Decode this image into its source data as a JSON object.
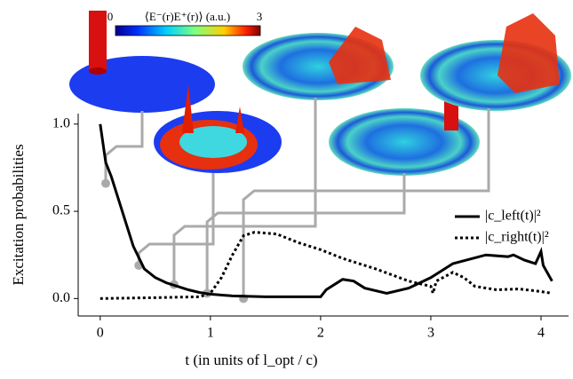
{
  "chart_data": {
    "type": "line",
    "xlabel": "t (in units of l_opt / c)",
    "ylabel": "Excitation probabilities",
    "colorbar": {
      "label": "⟨E⁻(r)E⁺(r)⟩ (a.u.)",
      "min": 0,
      "max": 3
    },
    "xlim": [
      -0.2,
      4.25
    ],
    "ylim": [
      -0.1,
      1.06
    ],
    "xticks": [
      0,
      1,
      2,
      3,
      4
    ],
    "yticks": [
      {
        "value": 0,
        "label": "0.0"
      },
      {
        "value": 0.5,
        "label": "0.5"
      },
      {
        "value": 1,
        "label": "1.0"
      }
    ],
    "legend": "right",
    "series": [
      {
        "name": "|c_left(t)|²",
        "color": "#000000",
        "dash": "solid",
        "x": [
          0,
          0.05,
          0.1,
          0.2,
          0.3,
          0.4,
          0.5,
          0.6,
          0.7,
          0.8,
          0.9,
          1.0,
          1.2,
          1.5,
          2.0,
          2.05,
          2.2,
          2.3,
          2.4,
          2.6,
          2.8,
          3.0,
          3.2,
          3.5,
          3.7,
          3.75,
          3.85,
          3.95,
          4.0,
          4.02,
          4.1
        ],
        "values": [
          1.0,
          0.78,
          0.7,
          0.5,
          0.3,
          0.17,
          0.12,
          0.09,
          0.07,
          0.05,
          0.035,
          0.025,
          0.015,
          0.01,
          0.01,
          0.05,
          0.11,
          0.1,
          0.06,
          0.03,
          0.06,
          0.12,
          0.2,
          0.25,
          0.24,
          0.25,
          0.22,
          0.2,
          0.27,
          0.19,
          0.1
        ]
      },
      {
        "name": "|c_right(t)|²",
        "color": "#000000",
        "dash": "dotted",
        "x": [
          0,
          0.5,
          0.9,
          1.0,
          1.1,
          1.2,
          1.3,
          1.4,
          1.6,
          1.8,
          2.0,
          2.2,
          2.5,
          2.8,
          3.0,
          3.02,
          3.05,
          3.2,
          3.3,
          3.4,
          3.6,
          3.8,
          4.0,
          4.1
        ],
        "values": [
          0,
          0.005,
          0.01,
          0.03,
          0.12,
          0.25,
          0.36,
          0.38,
          0.37,
          0.32,
          0.28,
          0.23,
          0.17,
          0.1,
          0.07,
          0.03,
          0.1,
          0.15,
          0.12,
          0.07,
          0.05,
          0.055,
          0.04,
          0.03
        ]
      }
    ],
    "snapshots": {
      "x": [
        0.05,
        0.35,
        0.67,
        0.97,
        1.3
      ],
      "values": [
        0.66,
        0.19,
        0.08,
        0.03,
        0.0
      ],
      "color": "#aaaaaa"
    }
  }
}
